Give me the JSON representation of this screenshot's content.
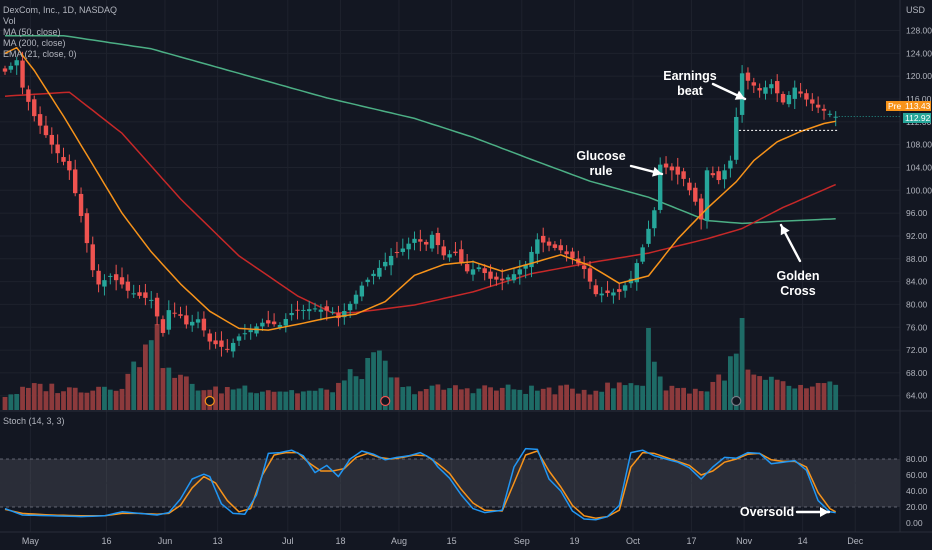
{
  "header": {
    "title": "DexCom, Inc., 1D, NASDAQ",
    "indicators": [
      "Vol",
      "MA (50, close)",
      "MA (200, close)",
      "EMA (21, close, 0)"
    ],
    "currency": "USD",
    "osc_label": "Stoch (14, 3, 3)"
  },
  "price_tags": {
    "pre_label": "Pre",
    "pre_value": "113.43",
    "last_value": "112.92"
  },
  "annotations": {
    "earnings": "Earnings\nbeat",
    "glucose": "Glucose\nrule",
    "golden": "Golden\nCross",
    "oversold": "Oversold"
  },
  "colors": {
    "background": "#131722",
    "up": "#26a69a",
    "down": "#ef5350",
    "vol_up": "#1e6b66",
    "vol_down": "#8c3a3c",
    "ma50": "#c62828",
    "ma200": "#4caf85",
    "ema21": "#f7931a",
    "stoch_k": "#2196f3",
    "stoch_d": "#f7931a",
    "pre_tag": "#f7931a",
    "last_tag": "#26a69a"
  },
  "chart_data": {
    "type": "candlestick",
    "x_tick_labels": [
      "May",
      "16",
      "Jun",
      "13",
      "Jul",
      "18",
      "Aug",
      "15",
      "Sep",
      "19",
      "Oct",
      "17",
      "Nov",
      "14",
      "Dec"
    ],
    "price_axis": {
      "ticks": [
        "64.00",
        "68.00",
        "72.00",
        "76.00",
        "80.00",
        "84.00",
        "88.00",
        "92.00",
        "96.00",
        "100.00",
        "104.00",
        "108.00",
        "112.00",
        "116.00",
        "120.00",
        "124.00",
        "128.00"
      ],
      "range": [
        61.5,
        133
      ]
    },
    "stoch_axis": {
      "ticks": [
        "0.00",
        "20.00",
        "40.00",
        "60.00",
        "80.00"
      ],
      "band": [
        20,
        80
      ]
    },
    "price_anchors": [
      [
        0,
        120.8
      ],
      [
        2,
        122.8
      ],
      [
        3,
        118
      ],
      [
        5,
        113
      ],
      [
        8,
        108
      ],
      [
        11,
        103.5
      ],
      [
        13,
        95.5
      ],
      [
        15,
        86
      ],
      [
        16,
        83.5
      ],
      [
        18,
        85
      ],
      [
        20,
        83.5
      ],
      [
        21,
        82.4
      ],
      [
        23,
        81.5
      ],
      [
        25,
        80.8
      ],
      [
        27,
        75
      ],
      [
        28,
        79
      ],
      [
        30,
        78
      ],
      [
        31,
        76.5
      ],
      [
        33,
        77.4
      ],
      [
        35,
        73.5
      ],
      [
        38,
        72.1
      ],
      [
        40,
        74.4
      ],
      [
        42,
        75.5
      ],
      [
        44,
        76.8
      ],
      [
        47,
        76.4
      ],
      [
        49,
        78.5
      ],
      [
        50,
        78.9
      ],
      [
        53,
        79.3
      ],
      [
        56,
        78.7
      ],
      [
        57,
        77.6
      ],
      [
        59,
        80.1
      ],
      [
        61,
        83.3
      ],
      [
        64,
        86.4
      ],
      [
        66,
        88.5
      ],
      [
        68,
        89.8
      ],
      [
        70,
        91.5
      ],
      [
        72,
        90.5
      ],
      [
        73,
        92.2
      ],
      [
        75,
        88.6
      ],
      [
        77,
        89
      ],
      [
        79,
        85.8
      ],
      [
        81,
        86.5
      ],
      [
        83,
        84.5
      ],
      [
        85,
        84.2
      ],
      [
        87,
        85.3
      ],
      [
        89,
        87
      ],
      [
        91,
        91.4
      ],
      [
        93,
        90.3
      ],
      [
        95,
        89.5
      ],
      [
        97,
        88.1
      ],
      [
        99,
        86.2
      ],
      [
        101,
        81.8
      ],
      [
        103,
        82
      ],
      [
        105,
        82.2
      ],
      [
        107,
        84.5
      ],
      [
        109,
        90
      ],
      [
        111,
        96.5
      ],
      [
        112,
        104.5
      ],
      [
        114,
        103.5
      ],
      [
        116,
        102
      ],
      [
        118,
        98
      ],
      [
        119,
        94.9
      ],
      [
        120,
        103.5
      ],
      [
        122,
        101.8
      ],
      [
        124,
        105.2
      ],
      [
        126,
        120.5
      ],
      [
        127,
        119.2
      ],
      [
        129,
        117.5
      ],
      [
        131,
        118.6
      ],
      [
        133,
        115.4
      ],
      [
        135,
        118
      ],
      [
        137,
        115.9
      ],
      [
        139,
        114.5
      ],
      [
        141,
        113.4
      ],
      [
        142,
        112.9
      ]
    ],
    "ma50_anchors": [
      [
        0,
        116.5
      ],
      [
        11,
        117.2
      ],
      [
        20,
        110
      ],
      [
        30,
        98.5
      ],
      [
        40,
        88.5
      ],
      [
        50,
        81.5
      ],
      [
        56,
        78.5
      ],
      [
        60,
        78.6
      ],
      [
        70,
        79.9
      ],
      [
        80,
        82.2
      ],
      [
        90,
        85.4
      ],
      [
        100,
        87.3
      ],
      [
        110,
        89
      ],
      [
        120,
        91.5
      ],
      [
        126,
        93.3
      ],
      [
        133,
        97
      ],
      [
        142,
        101
      ]
    ],
    "ma200_anchors": [
      [
        0,
        127.1
      ],
      [
        10,
        127.1
      ],
      [
        25,
        124.8
      ],
      [
        40,
        120.5
      ],
      [
        55,
        116.2
      ],
      [
        70,
        112.6
      ],
      [
        80,
        109.3
      ],
      [
        90,
        105.4
      ],
      [
        100,
        101.6
      ],
      [
        110,
        98.8
      ],
      [
        120,
        94.7
      ],
      [
        126,
        94.2
      ],
      [
        133,
        94.6
      ],
      [
        142,
        95
      ]
    ],
    "ema21_anchors": [
      [
        0,
        124
      ],
      [
        2,
        125
      ],
      [
        5,
        121
      ],
      [
        10,
        113
      ],
      [
        15,
        104.5
      ],
      [
        20,
        96
      ],
      [
        25,
        89.2
      ],
      [
        30,
        83.6
      ],
      [
        35,
        78.8
      ],
      [
        40,
        75.8
      ],
      [
        45,
        75.5
      ],
      [
        50,
        76.5
      ],
      [
        55,
        77.6
      ],
      [
        60,
        78.3
      ],
      [
        65,
        80.5
      ],
      [
        70,
        85.1
      ],
      [
        75,
        87
      ],
      [
        80,
        87.5
      ],
      [
        85,
        85.8
      ],
      [
        90,
        87.2
      ],
      [
        95,
        88.7
      ],
      [
        100,
        86.8
      ],
      [
        105,
        83.7
      ],
      [
        110,
        85
      ],
      [
        115,
        91.5
      ],
      [
        120,
        96.8
      ],
      [
        125,
        101.5
      ],
      [
        128,
        105.2
      ],
      [
        132,
        108.5
      ],
      [
        136,
        110.3
      ],
      [
        140,
        111.7
      ],
      [
        142,
        112.1
      ]
    ],
    "volume_profile": [
      [
        0,
        0.16
      ],
      [
        6,
        0.26
      ],
      [
        11,
        0.22
      ],
      [
        20,
        0.28
      ],
      [
        23,
        0.55
      ],
      [
        24,
        0.85
      ],
      [
        25,
        0.95
      ],
      [
        26,
        0.75
      ],
      [
        27,
        0.58
      ],
      [
        28,
        0.4
      ],
      [
        30,
        0.34
      ],
      [
        35,
        0.2
      ],
      [
        40,
        0.25
      ],
      [
        50,
        0.2
      ],
      [
        55,
        0.2
      ],
      [
        64,
        0.55
      ],
      [
        68,
        0.22
      ],
      [
        80,
        0.24
      ],
      [
        90,
        0.22
      ],
      [
        100,
        0.22
      ],
      [
        109,
        0.3
      ],
      [
        110,
        0.9
      ],
      [
        112,
        0.3
      ],
      [
        116,
        0.22
      ],
      [
        120,
        0.22
      ],
      [
        125,
        0.55
      ],
      [
        126,
        0.95
      ],
      [
        127,
        0.4
      ],
      [
        128,
        0.34
      ],
      [
        132,
        0.28
      ],
      [
        138,
        0.22
      ],
      [
        142,
        0.3
      ]
    ],
    "stoch_k": [
      [
        0,
        18
      ],
      [
        3,
        10
      ],
      [
        8,
        9
      ],
      [
        13,
        8
      ],
      [
        17,
        9
      ],
      [
        20,
        14
      ],
      [
        23,
        12
      ],
      [
        26,
        10
      ],
      [
        28,
        13
      ],
      [
        30,
        30
      ],
      [
        32,
        55
      ],
      [
        34,
        61
      ],
      [
        35,
        58
      ],
      [
        37,
        24
      ],
      [
        39,
        12
      ],
      [
        41,
        11
      ],
      [
        43,
        35
      ],
      [
        45,
        87
      ],
      [
        47,
        88
      ],
      [
        49,
        91
      ],
      [
        51,
        84
      ],
      [
        53,
        63
      ],
      [
        55,
        72
      ],
      [
        57,
        58
      ],
      [
        59,
        80
      ],
      [
        61,
        90
      ],
      [
        63,
        86
      ],
      [
        65,
        79
      ],
      [
        67,
        82
      ],
      [
        69,
        84
      ],
      [
        71,
        88
      ],
      [
        73,
        80
      ],
      [
        74,
        70
      ],
      [
        76,
        56
      ],
      [
        78,
        35
      ],
      [
        80,
        18
      ],
      [
        82,
        13
      ],
      [
        85,
        16
      ],
      [
        87,
        70
      ],
      [
        89,
        93
      ],
      [
        91,
        92
      ],
      [
        93,
        55
      ],
      [
        95,
        40
      ],
      [
        97,
        15
      ],
      [
        99,
        5
      ],
      [
        101,
        4
      ],
      [
        103,
        8
      ],
      [
        105,
        22
      ],
      [
        107,
        88
      ],
      [
        109,
        91
      ],
      [
        111,
        84
      ],
      [
        113,
        80
      ],
      [
        115,
        76
      ],
      [
        117,
        69
      ],
      [
        119,
        55
      ],
      [
        121,
        70
      ],
      [
        123,
        82
      ],
      [
        125,
        81
      ],
      [
        127,
        88
      ],
      [
        129,
        87
      ],
      [
        131,
        74
      ],
      [
        133,
        76
      ],
      [
        135,
        78
      ],
      [
        137,
        66
      ],
      [
        139,
        28
      ],
      [
        141,
        14
      ],
      [
        142,
        13
      ]
    ],
    "stoch_d": [
      [
        0,
        17
      ],
      [
        3,
        12
      ],
      [
        8,
        10
      ],
      [
        13,
        9
      ],
      [
        17,
        9
      ],
      [
        20,
        12
      ],
      [
        23,
        12
      ],
      [
        26,
        11
      ],
      [
        28,
        12
      ],
      [
        30,
        22
      ],
      [
        32,
        44
      ],
      [
        34,
        58
      ],
      [
        36,
        50
      ],
      [
        38,
        28
      ],
      [
        40,
        14
      ],
      [
        42,
        18
      ],
      [
        44,
        60
      ],
      [
        46,
        85
      ],
      [
        48,
        88
      ],
      [
        50,
        88
      ],
      [
        52,
        75
      ],
      [
        54,
        65
      ],
      [
        56,
        65
      ],
      [
        58,
        68
      ],
      [
        60,
        82
      ],
      [
        62,
        87
      ],
      [
        64,
        82
      ],
      [
        66,
        80
      ],
      [
        68,
        82
      ],
      [
        70,
        85
      ],
      [
        72,
        84
      ],
      [
        74,
        74
      ],
      [
        76,
        62
      ],
      [
        78,
        42
      ],
      [
        80,
        25
      ],
      [
        82,
        16
      ],
      [
        85,
        15
      ],
      [
        87,
        50
      ],
      [
        89,
        85
      ],
      [
        91,
        90
      ],
      [
        93,
        65
      ],
      [
        95,
        45
      ],
      [
        97,
        22
      ],
      [
        99,
        9
      ],
      [
        101,
        6
      ],
      [
        103,
        8
      ],
      [
        105,
        16
      ],
      [
        107,
        70
      ],
      [
        109,
        88
      ],
      [
        111,
        87
      ],
      [
        113,
        82
      ],
      [
        115,
        77
      ],
      [
        117,
        72
      ],
      [
        119,
        60
      ],
      [
        121,
        65
      ],
      [
        123,
        76
      ],
      [
        125,
        80
      ],
      [
        127,
        86
      ],
      [
        129,
        87
      ],
      [
        131,
        79
      ],
      [
        133,
        77
      ],
      [
        135,
        77
      ],
      [
        137,
        70
      ],
      [
        139,
        38
      ],
      [
        141,
        18
      ],
      [
        142,
        14
      ]
    ]
  }
}
